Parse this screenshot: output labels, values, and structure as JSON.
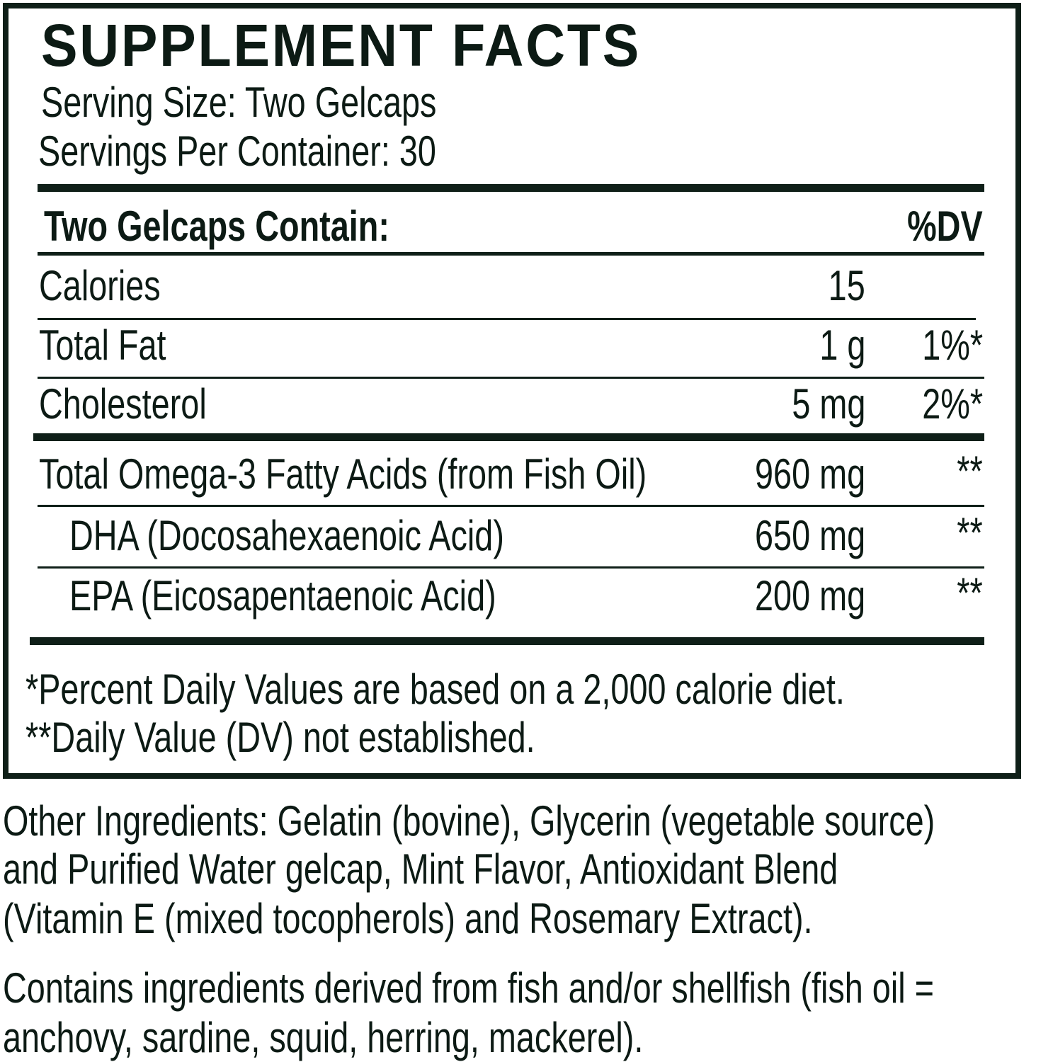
{
  "title": "SUPPLEMENT FACTS",
  "serving_size": "Serving Size: Two Gelcaps",
  "servings_per_container": "Servings Per Container: 30",
  "table_header": {
    "label": "Two Gelcaps Contain:",
    "dv": "%DV"
  },
  "rows": [
    {
      "name": "Calories",
      "amount": "15",
      "dv": ""
    },
    {
      "name": "Total Fat",
      "amount": "1 g",
      "dv": "1%*"
    },
    {
      "name": "Cholesterol",
      "amount": "5 mg",
      "dv": "2%*"
    },
    {
      "name": "Total Omega-3 Fatty Acids (from Fish Oil)",
      "amount": "960 mg",
      "dv": "**"
    },
    {
      "name": "DHA (Docosahexaenoic Acid)",
      "amount": "650 mg",
      "dv": "**"
    },
    {
      "name": "EPA (Eicosapentaenoic Acid)",
      "amount": "200 mg",
      "dv": "**"
    }
  ],
  "footnotes": [
    "*Percent Daily Values are based on a 2,000 calorie diet.",
    "**Daily Value (DV) not established."
  ],
  "other_ingredients": [
    "Other Ingredients: Gelatin (bovine), Glycerin (vegetable source)",
    "and Purified Water gelcap, Mint Flavor, Antioxidant Blend",
    "(Vitamin E (mixed tocopherols) and Rosemary Extract)."
  ],
  "allergen": [
    "Contains ingredients derived from fish and/or shellfish (fish oil =",
    "anchovy, sardine, squid, herring, mackerel)."
  ],
  "colors": {
    "ink": "#0f1f18"
  }
}
